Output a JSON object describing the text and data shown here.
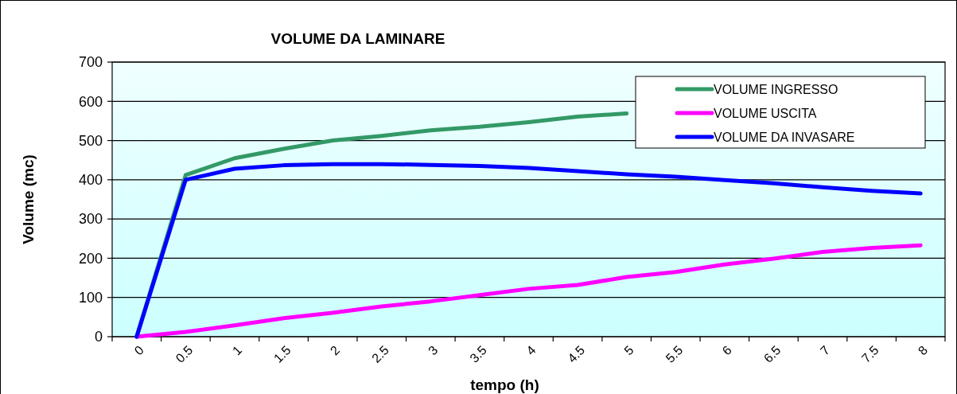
{
  "chart_data": {
    "type": "line",
    "title": "VOLUME DA LAMINARE",
    "xlabel": "tempo (h)",
    "ylabel": "Volume (mc)",
    "categories": [
      "0",
      "0.5",
      "1",
      "1.5",
      "2",
      "2.5",
      "3",
      "3.5",
      "4",
      "4.5",
      "5",
      "5.5",
      "6",
      "6.5",
      "7",
      "7.5",
      "8"
    ],
    "series": [
      {
        "name": "VOLUME INGRESSO",
        "color": "#339966",
        "values": [
          0,
          412,
          455,
          479,
          500,
          512,
          526,
          535,
          547,
          561,
          569,
          null,
          null,
          null,
          null,
          null,
          null
        ]
      },
      {
        "name": "VOLUME USCITA",
        "color": "#ff00ff",
        "values": [
          0,
          12,
          29,
          47,
          61,
          77,
          90,
          106,
          122,
          132,
          152,
          165,
          184,
          199,
          216,
          226,
          233
        ]
      },
      {
        "name": "VOLUME DA INVASARE",
        "color": "#0000ff",
        "values": [
          0,
          400,
          428,
          437,
          440,
          440,
          438,
          435,
          430,
          422,
          414,
          408,
          399,
          391,
          381,
          372,
          365
        ]
      }
    ],
    "ylim": [
      0,
      700
    ],
    "yticks": [
      0,
      100,
      200,
      300,
      400,
      500,
      600,
      700
    ],
    "grid": "y",
    "legend": "top right",
    "marker": "none",
    "line_style": "solid"
  }
}
